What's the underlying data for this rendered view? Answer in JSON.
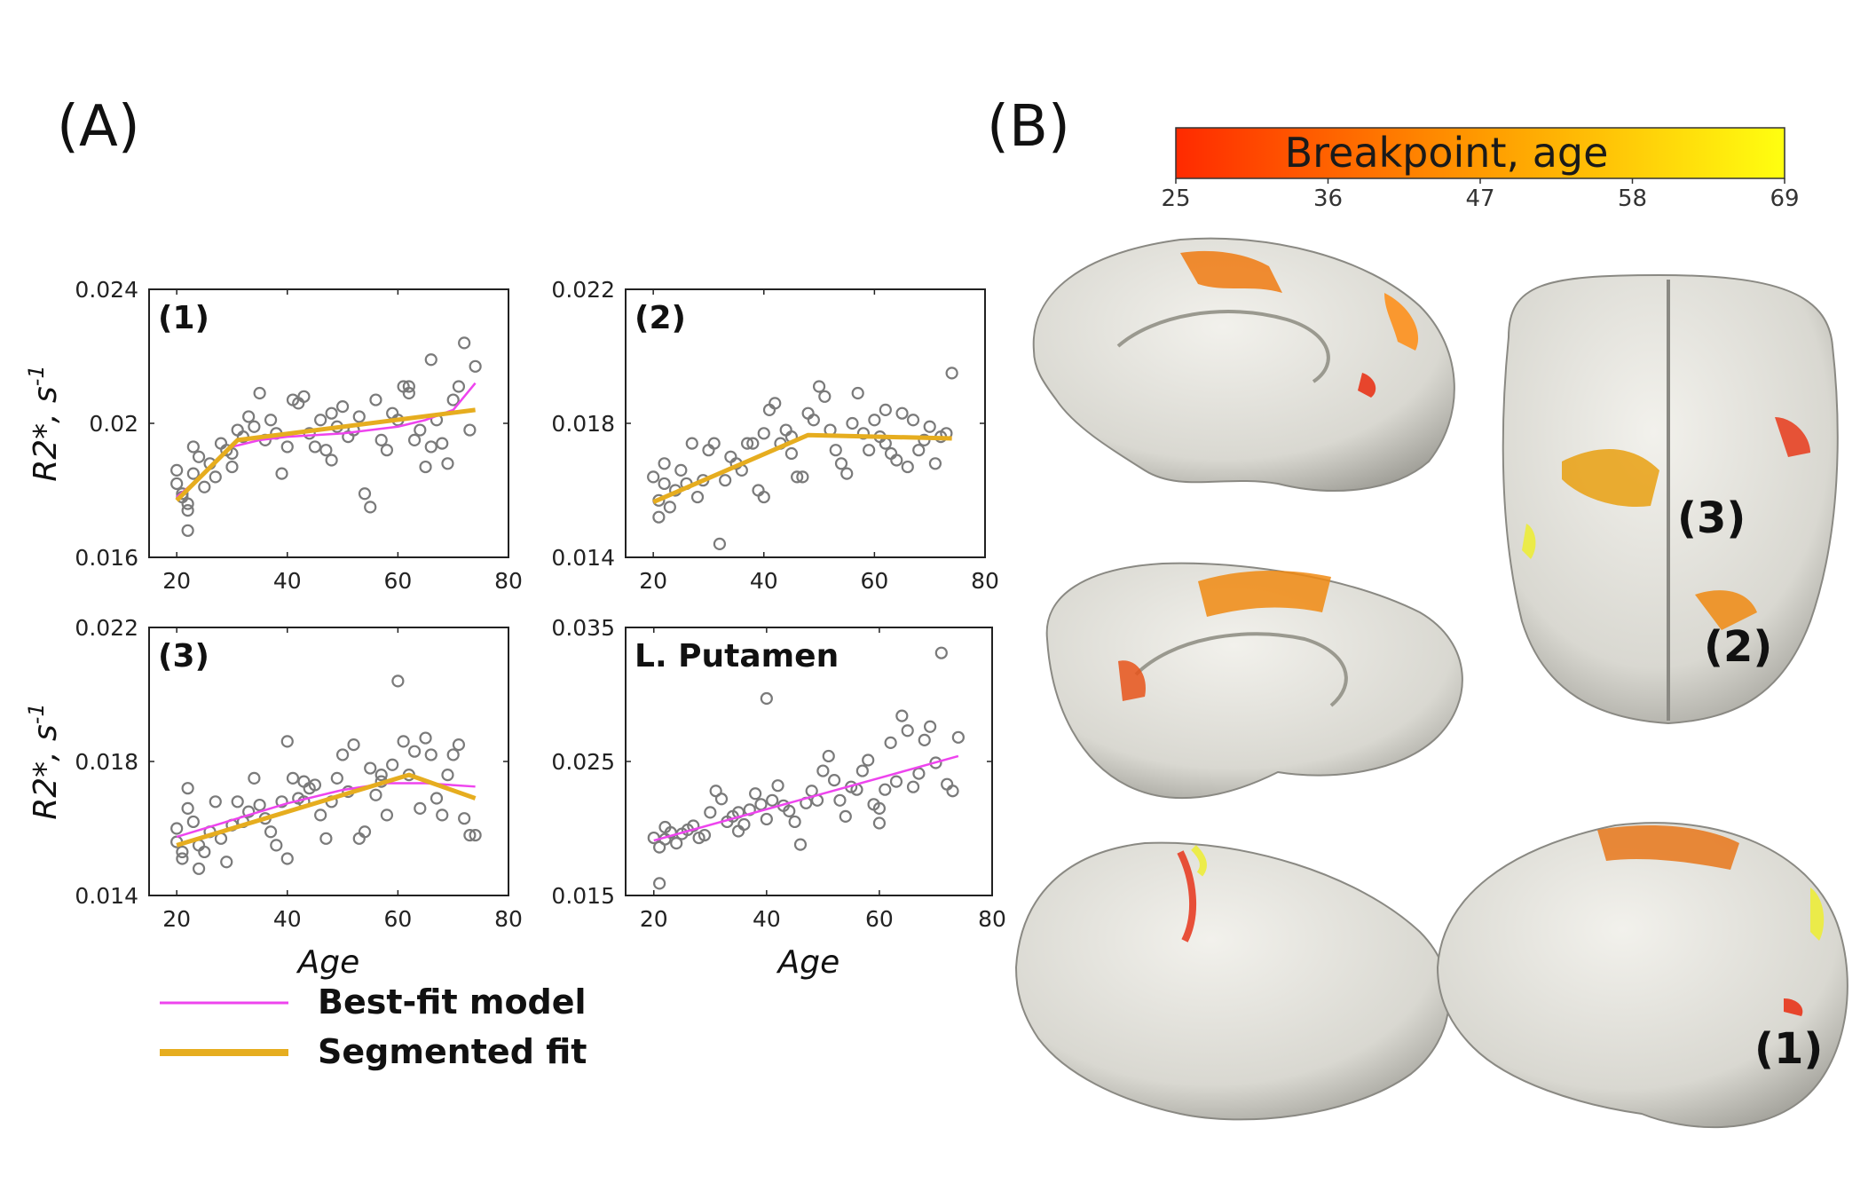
{
  "panel_a_label": "(A)",
  "panel_b_label": "(B)",
  "legend": {
    "best_fit": "Best-fit model",
    "segmented": "Segmented fit",
    "best_fit_color": "#ee44ee",
    "segmented_color": "#e6ad1f"
  },
  "colorbar": {
    "title": "Breakpoint, age",
    "ticks": [
      "25",
      "36",
      "47",
      "58",
      "69"
    ],
    "color_low": "#ff2a00",
    "color_mid": "#ff9a00",
    "color_high": "#ffff10"
  },
  "brain_labels": [
    "(3)",
    "(2)",
    "(1)"
  ],
  "chart_data": [
    {
      "type": "scatter",
      "title": "(1)",
      "xlabel": "",
      "ylabel": "R2*, s",
      "ylabel_sup": "-1",
      "xlim": [
        15,
        80
      ],
      "ylim": [
        0.016,
        0.024
      ],
      "xticks": [
        20,
        40,
        60,
        80
      ],
      "yticks": [
        0.016,
        0.02,
        0.024
      ],
      "ytick_labels": [
        "0.016",
        "0.02",
        "0.024"
      ],
      "points": [
        [
          20,
          0.0186
        ],
        [
          20,
          0.0182
        ],
        [
          21,
          0.0179
        ],
        [
          21,
          0.0178
        ],
        [
          22,
          0.0176
        ],
        [
          22,
          0.0168
        ],
        [
          22,
          0.0174
        ],
        [
          23,
          0.0193
        ],
        [
          23,
          0.0185
        ],
        [
          24,
          0.019
        ],
        [
          25,
          0.0181
        ],
        [
          26,
          0.0188
        ],
        [
          27,
          0.0184
        ],
        [
          28,
          0.0194
        ],
        [
          29,
          0.0192
        ],
        [
          30,
          0.0187
        ],
        [
          31,
          0.0198
        ],
        [
          32,
          0.0196
        ],
        [
          33,
          0.0202
        ],
        [
          34,
          0.0199
        ],
        [
          35,
          0.0209
        ],
        [
          36,
          0.0195
        ],
        [
          37,
          0.0201
        ],
        [
          38,
          0.0197
        ],
        [
          39,
          0.0185
        ],
        [
          40,
          0.0193
        ],
        [
          41,
          0.0207
        ],
        [
          42,
          0.0206
        ],
        [
          43,
          0.0208
        ],
        [
          44,
          0.0197
        ],
        [
          45,
          0.0193
        ],
        [
          46,
          0.0201
        ],
        [
          47,
          0.0192
        ],
        [
          48,
          0.0203
        ],
        [
          49,
          0.0199
        ],
        [
          50,
          0.0205
        ],
        [
          51,
          0.0196
        ],
        [
          52,
          0.0198
        ],
        [
          53,
          0.0202
        ],
        [
          54,
          0.0179
        ],
        [
          55,
          0.0175
        ],
        [
          56,
          0.0207
        ],
        [
          57,
          0.0195
        ],
        [
          58,
          0.0192
        ],
        [
          59,
          0.0203
        ],
        [
          60,
          0.0201
        ],
        [
          61,
          0.0211
        ],
        [
          62,
          0.0209
        ],
        [
          63,
          0.0195
        ],
        [
          64,
          0.0198
        ],
        [
          65,
          0.0187
        ],
        [
          66,
          0.0219
        ],
        [
          67,
          0.0201
        ],
        [
          68,
          0.0194
        ],
        [
          69,
          0.0188
        ],
        [
          70,
          0.0207
        ],
        [
          71,
          0.0211
        ],
        [
          72,
          0.0224
        ],
        [
          73,
          0.0198
        ],
        [
          74,
          0.0217
        ],
        [
          66,
          0.0193
        ],
        [
          62,
          0.0211
        ],
        [
          48,
          0.0189
        ],
        [
          30,
          0.0191
        ]
      ],
      "best_fit": {
        "x": [
          20,
          25,
          30,
          35,
          40,
          50,
          60,
          65,
          70,
          74
        ],
        "y": [
          0.0178,
          0.0185,
          0.0193,
          0.0195,
          0.0196,
          0.0197,
          0.0199,
          0.0201,
          0.0204,
          0.0212
        ]
      },
      "segmented": {
        "x": [
          20,
          31,
          74
        ],
        "y": [
          0.0177,
          0.0195,
          0.0204
        ]
      }
    },
    {
      "type": "scatter",
      "title": "(2)",
      "xlabel": "",
      "ylabel": "",
      "xlim": [
        15,
        80
      ],
      "ylim": [
        0.014,
        0.022
      ],
      "xticks": [
        20,
        40,
        60,
        80
      ],
      "yticks": [
        0.014,
        0.018,
        0.022
      ],
      "ytick_labels": [
        "0.014",
        "0.018",
        "0.022"
      ],
      "points": [
        [
          20,
          0.0164
        ],
        [
          21,
          0.0157
        ],
        [
          21,
          0.0152
        ],
        [
          22,
          0.0162
        ],
        [
          22,
          0.0168
        ],
        [
          23,
          0.0155
        ],
        [
          24,
          0.016
        ],
        [
          25,
          0.0166
        ],
        [
          26,
          0.0162
        ],
        [
          27,
          0.0174
        ],
        [
          28,
          0.0158
        ],
        [
          29,
          0.0163
        ],
        [
          30,
          0.0172
        ],
        [
          31,
          0.0174
        ],
        [
          32,
          0.0144
        ],
        [
          33,
          0.0163
        ],
        [
          34,
          0.017
        ],
        [
          35,
          0.0168
        ],
        [
          36,
          0.0166
        ],
        [
          37,
          0.0174
        ],
        [
          38,
          0.0174
        ],
        [
          39,
          0.016
        ],
        [
          40,
          0.0158
        ],
        [
          40,
          0.0177
        ],
        [
          41,
          0.0184
        ],
        [
          42,
          0.0186
        ],
        [
          43,
          0.0174
        ],
        [
          44,
          0.0178
        ],
        [
          45,
          0.0171
        ],
        [
          46,
          0.0164
        ],
        [
          47,
          0.0164
        ],
        [
          48,
          0.0183
        ],
        [
          49,
          0.0181
        ],
        [
          50,
          0.0191
        ],
        [
          51,
          0.0188
        ],
        [
          52,
          0.0178
        ],
        [
          53,
          0.0172
        ],
        [
          54,
          0.0168
        ],
        [
          55,
          0.0165
        ],
        [
          56,
          0.018
        ],
        [
          57,
          0.0189
        ],
        [
          58,
          0.0177
        ],
        [
          59,
          0.0172
        ],
        [
          60,
          0.0181
        ],
        [
          61,
          0.0176
        ],
        [
          62,
          0.0174
        ],
        [
          63,
          0.0171
        ],
        [
          64,
          0.0169
        ],
        [
          65,
          0.0183
        ],
        [
          66,
          0.0167
        ],
        [
          67,
          0.0181
        ],
        [
          68,
          0.0172
        ],
        [
          69,
          0.0175
        ],
        [
          70,
          0.0179
        ],
        [
          71,
          0.0168
        ],
        [
          72,
          0.0176
        ],
        [
          73,
          0.0177
        ],
        [
          74,
          0.0195
        ],
        [
          62,
          0.0184
        ],
        [
          45,
          0.0176
        ]
      ],
      "best_fit": {
        "x": [
          20,
          48,
          74
        ],
        "y": [
          0.01565,
          0.01765,
          0.01755
        ]
      },
      "segmented": {
        "x": [
          20,
          48,
          74
        ],
        "y": [
          0.01565,
          0.01765,
          0.01755
        ]
      }
    },
    {
      "type": "scatter",
      "title": "(3)",
      "xlabel": "Age",
      "ylabel": "R2*, s",
      "ylabel_sup": "-1",
      "xlim": [
        15,
        80
      ],
      "ylim": [
        0.014,
        0.022
      ],
      "xticks": [
        20,
        40,
        60,
        80
      ],
      "yticks": [
        0.014,
        0.018,
        0.022
      ],
      "ytick_labels": [
        "0.014",
        "0.018",
        "0.022"
      ],
      "points": [
        [
          20,
          0.016
        ],
        [
          20,
          0.0156
        ],
        [
          21,
          0.0151
        ],
        [
          21,
          0.0153
        ],
        [
          22,
          0.0166
        ],
        [
          22,
          0.0172
        ],
        [
          23,
          0.0162
        ],
        [
          24,
          0.0155
        ],
        [
          24,
          0.0148
        ],
        [
          25,
          0.0153
        ],
        [
          26,
          0.0159
        ],
        [
          27,
          0.0168
        ],
        [
          28,
          0.0157
        ],
        [
          29,
          0.015
        ],
        [
          30,
          0.0161
        ],
        [
          31,
          0.0168
        ],
        [
          32,
          0.0162
        ],
        [
          33,
          0.0165
        ],
        [
          34,
          0.0175
        ],
        [
          35,
          0.0167
        ],
        [
          36,
          0.0163
        ],
        [
          37,
          0.0159
        ],
        [
          38,
          0.0155
        ],
        [
          39,
          0.0168
        ],
        [
          40,
          0.0186
        ],
        [
          40,
          0.0151
        ],
        [
          41,
          0.0175
        ],
        [
          42,
          0.0169
        ],
        [
          43,
          0.0174
        ],
        [
          44,
          0.0172
        ],
        [
          45,
          0.0173
        ],
        [
          46,
          0.0164
        ],
        [
          47,
          0.0157
        ],
        [
          48,
          0.0168
        ],
        [
          49,
          0.0175
        ],
        [
          50,
          0.0182
        ],
        [
          51,
          0.0171
        ],
        [
          52,
          0.0185
        ],
        [
          53,
          0.0157
        ],
        [
          54,
          0.0159
        ],
        [
          55,
          0.0178
        ],
        [
          56,
          0.017
        ],
        [
          57,
          0.0174
        ],
        [
          58,
          0.0164
        ],
        [
          59,
          0.0179
        ],
        [
          60,
          0.0204
        ],
        [
          61,
          0.0186
        ],
        [
          62,
          0.0176
        ],
        [
          63,
          0.0183
        ],
        [
          64,
          0.0166
        ],
        [
          65,
          0.0187
        ],
        [
          66,
          0.0182
        ],
        [
          67,
          0.0169
        ],
        [
          68,
          0.0164
        ],
        [
          69,
          0.0176
        ],
        [
          70,
          0.0182
        ],
        [
          71,
          0.0185
        ],
        [
          72,
          0.0163
        ],
        [
          73,
          0.0158
        ],
        [
          74,
          0.0158
        ],
        [
          57,
          0.0176
        ],
        [
          43,
          0.0168
        ]
      ],
      "best_fit": {
        "x": [
          20,
          30,
          40,
          50,
          58,
          65,
          74
        ],
        "y": [
          0.01575,
          0.01625,
          0.01675,
          0.01715,
          0.01735,
          0.01735,
          0.01725
        ]
      },
      "segmented": {
        "x": [
          20,
          62,
          74
        ],
        "y": [
          0.0155,
          0.0176,
          0.0169
        ]
      }
    },
    {
      "type": "scatter",
      "title": "L. Putamen",
      "xlabel": "Age",
      "ylabel": "",
      "xlim": [
        15,
        80
      ],
      "ylim": [
        0.015,
        0.035
      ],
      "xticks": [
        20,
        40,
        60,
        80
      ],
      "xtick_labels": [
        "20",
        "40",
        "60",
        "80"
      ],
      "yticks": [
        0.015,
        0.025,
        0.035
      ],
      "ytick_labels": [
        "0.015",
        "0.025",
        "0.035"
      ],
      "points": [
        [
          20,
          0.0193
        ],
        [
          21,
          0.0186
        ],
        [
          21,
          0.0159
        ],
        [
          22,
          0.0192
        ],
        [
          22,
          0.0201
        ],
        [
          23,
          0.0197
        ],
        [
          24,
          0.0189
        ],
        [
          25,
          0.0196
        ],
        [
          26,
          0.0199
        ],
        [
          27,
          0.0202
        ],
        [
          28,
          0.0193
        ],
        [
          29,
          0.0195
        ],
        [
          30,
          0.0212
        ],
        [
          31,
          0.0228
        ],
        [
          32,
          0.0222
        ],
        [
          33,
          0.0205
        ],
        [
          34,
          0.0209
        ],
        [
          35,
          0.0198
        ],
        [
          36,
          0.0203
        ],
        [
          37,
          0.0214
        ],
        [
          38,
          0.0226
        ],
        [
          39,
          0.0218
        ],
        [
          40,
          0.0297
        ],
        [
          40,
          0.0207
        ],
        [
          41,
          0.0221
        ],
        [
          42,
          0.0232
        ],
        [
          43,
          0.0217
        ],
        [
          44,
          0.0213
        ],
        [
          45,
          0.0205
        ],
        [
          46,
          0.0188
        ],
        [
          47,
          0.0219
        ],
        [
          48,
          0.0228
        ],
        [
          49,
          0.0221
        ],
        [
          50,
          0.0243
        ],
        [
          51,
          0.0254
        ],
        [
          52,
          0.0236
        ],
        [
          53,
          0.0221
        ],
        [
          54,
          0.0209
        ],
        [
          55,
          0.0231
        ],
        [
          56,
          0.0229
        ],
        [
          57,
          0.0243
        ],
        [
          58,
          0.0251
        ],
        [
          59,
          0.0218
        ],
        [
          60,
          0.0215
        ],
        [
          61,
          0.0229
        ],
        [
          62,
          0.0264
        ],
        [
          63,
          0.0235
        ],
        [
          64,
          0.0284
        ],
        [
          65,
          0.0273
        ],
        [
          66,
          0.0231
        ],
        [
          67,
          0.0241
        ],
        [
          68,
          0.0266
        ],
        [
          69,
          0.0276
        ],
        [
          70,
          0.0249
        ],
        [
          71,
          0.0331
        ],
        [
          72,
          0.0233
        ],
        [
          73,
          0.0228
        ],
        [
          74,
          0.0268
        ],
        [
          60,
          0.0204
        ],
        [
          35,
          0.0212
        ]
      ],
      "best_fit": {
        "x": [
          20,
          74
        ],
        "y": [
          0.0191,
          0.0254
        ]
      },
      "segmented": null
    }
  ]
}
